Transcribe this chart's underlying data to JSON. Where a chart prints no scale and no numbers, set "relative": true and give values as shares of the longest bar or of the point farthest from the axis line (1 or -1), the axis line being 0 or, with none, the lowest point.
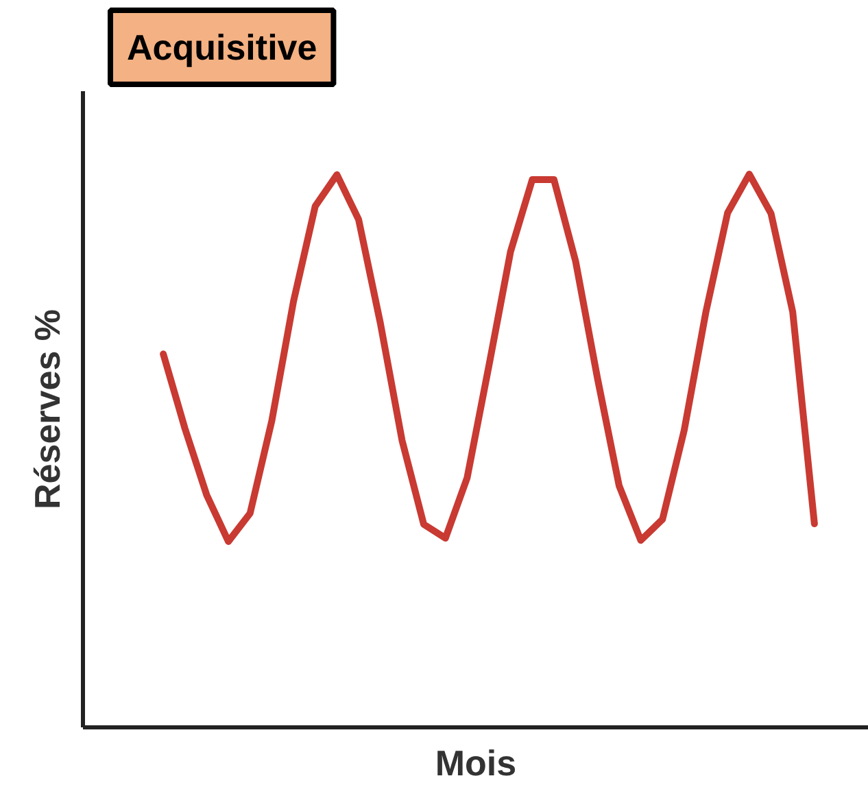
{
  "chart_data": {
    "type": "line",
    "title": "Acquisitive",
    "xlabel": "Mois",
    "ylabel": "Réserves %",
    "relative": true,
    "grid": false,
    "categories": [
      null,
      null,
      null,
      null,
      null,
      null,
      null,
      null,
      null,
      null,
      null,
      null,
      null,
      null,
      null,
      null,
      null,
      null,
      null,
      null,
      null,
      null,
      null,
      null,
      null,
      null,
      null,
      null,
      null,
      null,
      null
    ],
    "series": [
      {
        "color": "#c83a32",
        "values": [
          0.675,
          0.54,
          0.42,
          0.336,
          0.387,
          0.554,
          0.77,
          0.942,
          0.999,
          0.918,
          0.731,
          0.519,
          0.367,
          0.342,
          0.451,
          0.653,
          0.86,
          0.99,
          0.99,
          0.842,
          0.632,
          0.437,
          0.338,
          0.376,
          0.537,
          0.751,
          0.93,
          1,
          0.929,
          0.751,
          0.368
        ]
      }
    ]
  }
}
